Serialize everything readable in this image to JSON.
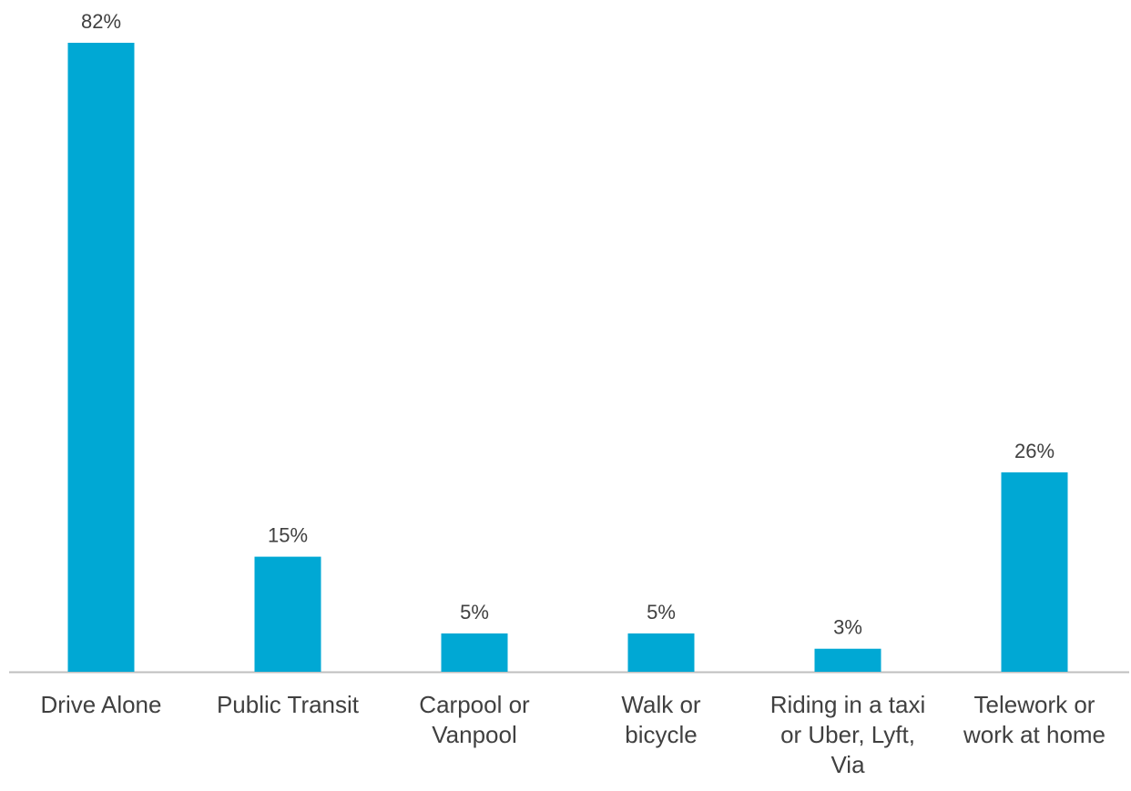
{
  "chart_data": {
    "type": "bar",
    "categories": [
      "Drive Alone",
      "Public Transit",
      "Carpool or Vanpool",
      "Walk or bicycle",
      "Riding in a taxi or  Uber, Lyft, Via",
      "Telework or work at home"
    ],
    "values": [
      82,
      15,
      5,
      5,
      3,
      26
    ],
    "value_labels": [
      "82%",
      "15%",
      "5%",
      "5%",
      "3%",
      "26%"
    ],
    "color": "#00a8d4"
  }
}
